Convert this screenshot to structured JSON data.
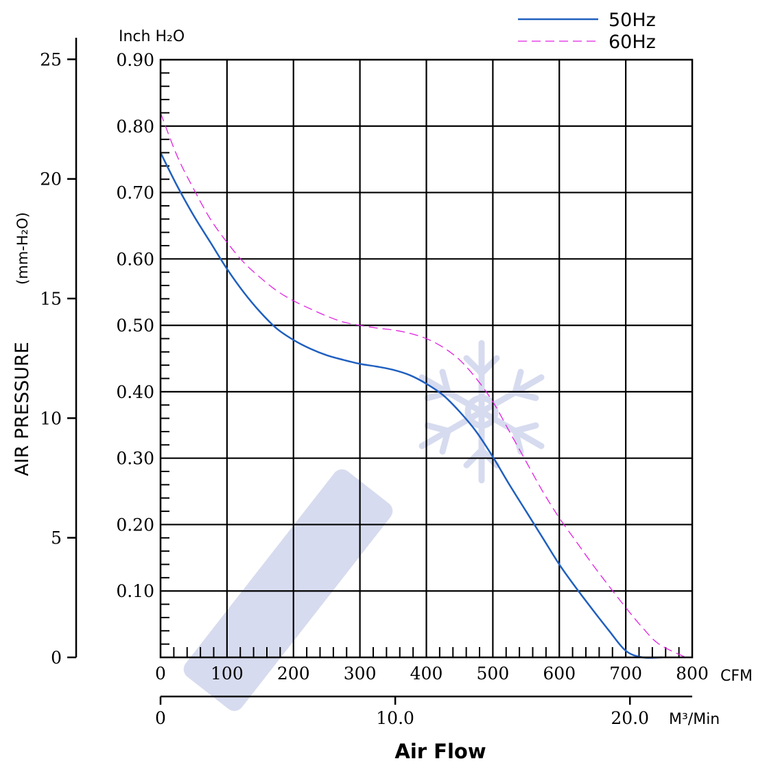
{
  "chart_data": {
    "type": "line",
    "x_unit_top": "CFM",
    "x_unit_bottom": "M³/Min",
    "xlabel": "Air Flow",
    "ylabel": "AIR PRESSURE",
    "ylabel_unit": "(mm-H₂O)",
    "y_unit_inner": "Inch H₂O",
    "x_ticks_cfm": [
      "0",
      "100",
      "200",
      "300",
      "400",
      "500",
      "600",
      "700",
      "800"
    ],
    "x_ticks_m3min": [
      "0",
      "10.0",
      "20.0"
    ],
    "y_ticks_inch": [
      "0.10",
      "0.20",
      "0.30",
      "0.40",
      "0.50",
      "0.60",
      "0.70",
      "0.80",
      "0.90"
    ],
    "y_ticks_mm": [
      "0",
      "5",
      "10",
      "15",
      "20",
      "25"
    ],
    "xlim_cfm": [
      0,
      800
    ],
    "ylim_inch": [
      0,
      0.9
    ],
    "grid": true,
    "legend_position": "top-right",
    "series": [
      {
        "name": "50Hz",
        "color": "#1f5fbf",
        "style": "solid",
        "x": [
          0,
          25,
          50,
          75,
          100,
          125,
          150,
          175,
          200,
          225,
          250,
          275,
          300,
          325,
          350,
          375,
          400,
          425,
          450,
          475,
          500,
          525,
          550,
          575,
          600,
          625,
          650,
          675,
          700,
          725,
          755
        ],
        "y": [
          0.76,
          0.71,
          0.665,
          0.625,
          0.585,
          0.55,
          0.52,
          0.495,
          0.478,
          0.465,
          0.455,
          0.448,
          0.442,
          0.438,
          0.433,
          0.425,
          0.412,
          0.395,
          0.37,
          0.34,
          0.302,
          0.26,
          0.22,
          0.18,
          0.14,
          0.105,
          0.072,
          0.04,
          0.01,
          0.0,
          0.0
        ]
      },
      {
        "name": "60Hz",
        "color": "#e020e0",
        "style": "dashed",
        "x": [
          0,
          25,
          50,
          75,
          100,
          125,
          150,
          175,
          200,
          225,
          250,
          275,
          300,
          325,
          350,
          375,
          400,
          425,
          450,
          475,
          500,
          525,
          550,
          575,
          600,
          625,
          650,
          675,
          700,
          725,
          750,
          790
        ],
        "y": [
          0.82,
          0.755,
          0.705,
          0.66,
          0.625,
          0.595,
          0.572,
          0.552,
          0.537,
          0.525,
          0.514,
          0.505,
          0.5,
          0.496,
          0.493,
          0.488,
          0.48,
          0.467,
          0.448,
          0.42,
          0.385,
          0.34,
          0.295,
          0.25,
          0.21,
          0.175,
          0.14,
          0.107,
          0.075,
          0.045,
          0.02,
          0.0
        ]
      }
    ]
  }
}
